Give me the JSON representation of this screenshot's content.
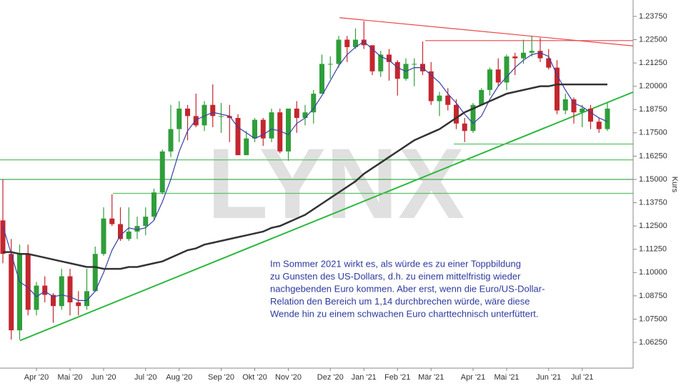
{
  "chart_data": {
    "type": "candlestick",
    "categories": [
      null,
      null,
      null,
      null,
      "Apr '20",
      null,
      null,
      null,
      "Mai '20",
      null,
      null,
      null,
      "Jun '20",
      null,
      null,
      null,
      null,
      "Jul '20",
      null,
      null,
      null,
      "Aug '20",
      null,
      null,
      null,
      null,
      "Sep '20",
      null,
      null,
      null,
      "Okt '20",
      null,
      null,
      null,
      "Nov '20",
      null,
      null,
      null,
      null,
      "Dez '20",
      null,
      null,
      null,
      "Jan '21",
      null,
      null,
      null,
      "Feb '21",
      null,
      null,
      null,
      "Mär '21",
      null,
      null,
      null,
      null,
      "Apr '21",
      null,
      null,
      null,
      "Mai '21",
      null,
      null,
      null,
      null,
      "Jun '21",
      null,
      null,
      null,
      "Jul '21",
      null,
      null,
      null
    ],
    "open": [
      1.128,
      1.11,
      1.069,
      1.11,
      1.08,
      1.093,
      1.088,
      1.082,
      1.098,
      1.084,
      1.082,
      1.09,
      1.11,
      1.129,
      1.126,
      1.118,
      1.122,
      1.125,
      1.13,
      1.143,
      1.165,
      1.177,
      1.188,
      1.184,
      1.179,
      1.19,
      1.184,
      1.184,
      1.183,
      1.163,
      1.172,
      1.182,
      1.172,
      1.186,
      1.165,
      1.188,
      1.183,
      1.186,
      1.196,
      1.212,
      1.212,
      1.225,
      1.221,
      1.225,
      1.222,
      1.208,
      1.217,
      1.213,
      1.204,
      1.212,
      1.212,
      1.208,
      1.192,
      1.195,
      1.19,
      1.18,
      1.176,
      1.19,
      1.198,
      1.209,
      1.202,
      1.216,
      1.215,
      1.218,
      1.219,
      1.215,
      1.21,
      1.187,
      1.193,
      1.186,
      1.188,
      1.181,
      1.177
    ],
    "high": [
      1.15,
      1.118,
      1.115,
      1.115,
      1.095,
      1.098,
      1.089,
      1.102,
      1.102,
      1.09,
      1.102,
      1.114,
      1.135,
      1.142,
      1.135,
      1.135,
      1.13,
      1.135,
      1.145,
      1.166,
      1.19,
      1.192,
      1.19,
      1.196,
      1.192,
      1.201,
      1.191,
      1.19,
      1.185,
      1.176,
      1.183,
      1.183,
      1.188,
      1.188,
      1.188,
      1.192,
      1.19,
      1.198,
      1.217,
      1.216,
      1.227,
      1.227,
      1.231,
      1.235,
      1.222,
      1.219,
      1.22,
      1.214,
      1.215,
      1.215,
      1.224,
      1.213,
      1.197,
      1.199,
      1.193,
      1.183,
      1.191,
      1.199,
      1.21,
      1.215,
      1.217,
      1.218,
      1.225,
      1.227,
      1.226,
      1.22,
      1.214,
      1.196,
      1.194,
      1.19,
      1.19,
      1.183,
      1.191
    ],
    "low": [
      1.105,
      1.064,
      1.064,
      1.077,
      1.077,
      1.084,
      1.073,
      1.08,
      1.077,
      1.077,
      1.08,
      1.09,
      1.109,
      1.125,
      1.117,
      1.117,
      1.118,
      1.12,
      1.128,
      1.142,
      1.162,
      1.17,
      1.171,
      1.178,
      1.176,
      1.178,
      1.175,
      1.17,
      1.163,
      1.163,
      1.17,
      1.168,
      1.17,
      1.164,
      1.16,
      1.175,
      1.179,
      1.18,
      1.196,
      1.204,
      1.21,
      1.213,
      1.22,
      1.22,
      1.206,
      1.205,
      1.203,
      1.195,
      1.203,
      1.2,
      1.206,
      1.19,
      1.184,
      1.187,
      1.177,
      1.17,
      1.175,
      1.19,
      1.195,
      1.2,
      1.198,
      1.206,
      1.212,
      1.216,
      1.213,
      1.209,
      1.185,
      1.185,
      1.18,
      1.178,
      1.177,
      1.175,
      1.176
    ],
    "close": [
      1.11,
      1.069,
      1.11,
      1.08,
      1.093,
      1.088,
      1.082,
      1.098,
      1.084,
      1.082,
      1.09,
      1.11,
      1.129,
      1.126,
      1.118,
      1.122,
      1.125,
      1.13,
      1.143,
      1.165,
      1.177,
      1.188,
      1.184,
      1.179,
      1.19,
      1.184,
      1.184,
      1.183,
      1.163,
      1.172,
      1.182,
      1.172,
      1.186,
      1.165,
      1.188,
      1.183,
      1.186,
      1.196,
      1.212,
      1.212,
      1.225,
      1.221,
      1.225,
      1.222,
      1.208,
      1.217,
      1.213,
      1.204,
      1.212,
      1.212,
      1.208,
      1.192,
      1.195,
      1.19,
      1.18,
      1.176,
      1.19,
      1.198,
      1.209,
      1.202,
      1.216,
      1.215,
      1.218,
      1.219,
      1.215,
      1.21,
      1.187,
      1.193,
      1.186,
      1.188,
      1.181,
      1.177,
      1.188
    ],
    "up_color": "#2f9e3a",
    "down_color": "#c4262e",
    "moving_averages": [
      {
        "color": "#3a3fa8",
        "values": [
          1.125,
          1.11,
          1.095,
          1.092,
          1.087,
          1.09,
          1.087,
          1.088,
          1.087,
          1.085,
          1.085,
          1.09,
          1.1,
          1.112,
          1.12,
          1.124,
          1.123,
          1.124,
          1.128,
          1.138,
          1.15,
          1.165,
          1.176,
          1.182,
          1.184,
          1.186,
          1.185,
          1.184,
          1.178,
          1.175,
          1.172,
          1.174,
          1.177,
          1.176,
          1.174,
          1.18,
          1.183,
          1.188,
          1.195,
          1.203,
          1.211,
          1.217,
          1.221,
          1.224,
          1.22,
          1.216,
          1.214,
          1.21,
          1.208,
          1.21,
          1.21,
          1.206,
          1.202,
          1.196,
          1.191,
          1.185,
          1.18,
          1.184,
          1.193,
          1.2,
          1.205,
          1.21,
          1.214,
          1.217,
          1.218,
          1.216,
          1.206,
          1.198,
          1.191,
          1.189,
          1.186,
          1.183,
          1.181
        ]
      },
      {
        "color": "#333333",
        "values": [
          1.111,
          1.111,
          1.11,
          1.11,
          1.109,
          1.108,
          1.107,
          1.106,
          1.105,
          1.104,
          1.103,
          1.103,
          1.102,
          1.102,
          1.102,
          1.103,
          1.103,
          1.104,
          1.105,
          1.106,
          1.108,
          1.11,
          1.112,
          1.113,
          1.115,
          1.116,
          1.117,
          1.118,
          1.119,
          1.12,
          1.121,
          1.122,
          1.124,
          1.125,
          1.127,
          1.129,
          1.131,
          1.134,
          1.137,
          1.14,
          1.143,
          1.146,
          1.149,
          1.153,
          1.156,
          1.159,
          1.162,
          1.165,
          1.168,
          1.171,
          1.173,
          1.175,
          1.177,
          1.18,
          1.183,
          1.186,
          1.188,
          1.19,
          1.192,
          1.194,
          1.196,
          1.197,
          1.198,
          1.199,
          1.2,
          1.2,
          1.201,
          1.201,
          1.201,
          1.201,
          1.201,
          1.201,
          1.201
        ]
      }
    ],
    "lines": [
      {
        "color": "#2db83d",
        "points": [
          [
            2.04,
            1.0635
          ],
          [
            75.4,
            1.1975
          ]
        ]
      },
      {
        "color": "#e8474c",
        "points": [
          [
            40.1,
            1.2368
          ],
          [
            75.4,
            1.2215
          ]
        ]
      },
      {
        "color": "#e8474c",
        "points": [
          [
            50.3,
            1.2245
          ],
          [
            75.4,
            1.2245
          ]
        ]
      },
      {
        "color": "#5cc267",
        "points": [
          [
            53.7,
            1.169
          ],
          [
            75.4,
            1.169
          ]
        ]
      },
      {
        "color": "#5cc267",
        "points": [
          [
            -0.34,
            1.1605
          ],
          [
            75.4,
            1.1605
          ]
        ]
      },
      {
        "color": "#3fae4b",
        "points": [
          [
            -0.34,
            1.15
          ],
          [
            75.4,
            1.15
          ]
        ]
      },
      {
        "color": "#5cc267",
        "points": [
          [
            13.1,
            1.1425
          ],
          [
            75.4,
            1.1425
          ]
        ]
      }
    ],
    "ylim": [
      1.0487,
      1.2463
    ],
    "yticks": [
      {
        "value": 1.0625,
        "label": "1.06250"
      },
      {
        "value": 1.075,
        "label": "1.07500"
      },
      {
        "value": 1.0875,
        "label": "1.08750"
      },
      {
        "value": 1.1,
        "label": "1.10000"
      },
      {
        "value": 1.1125,
        "label": "1.11250"
      },
      {
        "value": 1.125,
        "label": "1.12500"
      },
      {
        "value": 1.1375,
        "label": "1.13750"
      },
      {
        "value": 1.15,
        "label": "1.15000"
      },
      {
        "value": 1.1625,
        "label": "1.16250"
      },
      {
        "value": 1.175,
        "label": "1.17500"
      },
      {
        "value": 1.1875,
        "label": "1.18750"
      },
      {
        "value": 1.2,
        "label": "1.20000"
      },
      {
        "value": 1.2125,
        "label": "1.21250"
      },
      {
        "value": 1.225,
        "label": "1.22500"
      },
      {
        "value": 1.2375,
        "label": "1.23750"
      }
    ],
    "y_label": "Kurs",
    "watermark": "LYNX",
    "annotation": [
      "Im Sommer 2021 wirkt es, als würde es zu einer Toppbildung",
      "zu Gunsten des US-Dollars, d.h. zu einem mittelfristig wieder",
      "nachgebenden Euro kommen. Aber erst, wenn die Euro/US-Dollar-",
      "Relation den Bereich um 1,14 durchbrechen würde, wäre diese",
      "Wende hin zu einem schwachen Euro charttechnisch unterfüttert."
    ]
  }
}
